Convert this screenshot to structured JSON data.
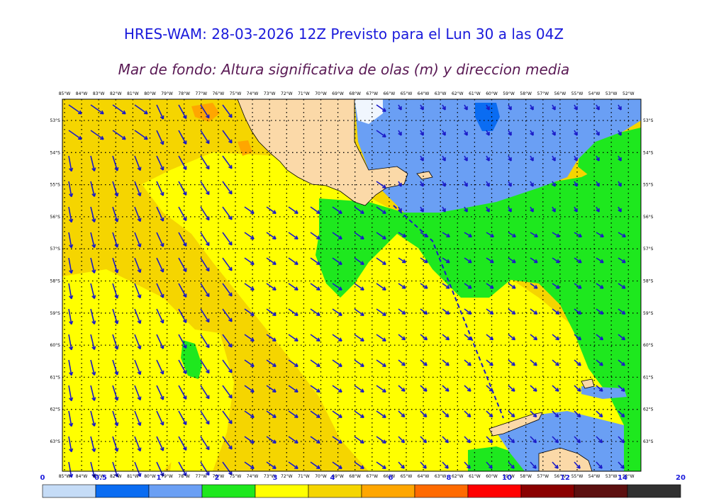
{
  "header": {
    "title": "HRES-WAM: 28-03-2026 12Z Previsto para el Lun 30 a las 04Z",
    "subtitle": "Mar de fondo: Altura significativa de olas (m) y direccion media"
  },
  "map": {
    "lon_labels": [
      "85°W",
      "84°W",
      "83°W",
      "82°W",
      "81°W",
      "80°W",
      "79°W",
      "78°W",
      "77°W",
      "76°W",
      "75°W",
      "74°W",
      "73°W",
      "72°W",
      "71°W",
      "70°W",
      "69°W",
      "68°W",
      "67°W",
      "66°W",
      "65°W",
      "64°W",
      "63°W",
      "62°W",
      "61°W",
      "60°W",
      "59°W",
      "58°W",
      "57°W",
      "56°W",
      "55°W",
      "54°W",
      "53°W",
      "52°W"
    ],
    "lat_labels": [
      "53°S",
      "54°S",
      "55°S",
      "56°S",
      "57°S",
      "58°S",
      "59°S",
      "60°S",
      "61°S",
      "62°S",
      "63°S"
    ],
    "colors": {
      "land": "#fbd9a8",
      "ice": "#ffffff",
      "vectors": "#1a1ac8",
      "frame": "#000000"
    }
  },
  "colorbar": {
    "tick_labels": [
      "0",
      "0.5",
      "1",
      "2",
      "3",
      "4",
      "6",
      "8",
      "10",
      "12",
      "14",
      "20"
    ],
    "colors": [
      "#c5dcf7",
      "#0a6cf2",
      "#6a9ff4",
      "#1ee81e",
      "#ffff00",
      "#f5d500",
      "#ffa600",
      "#ff6a00",
      "#ff0000",
      "#8a0000",
      "#5c1010",
      "#303030"
    ]
  }
}
